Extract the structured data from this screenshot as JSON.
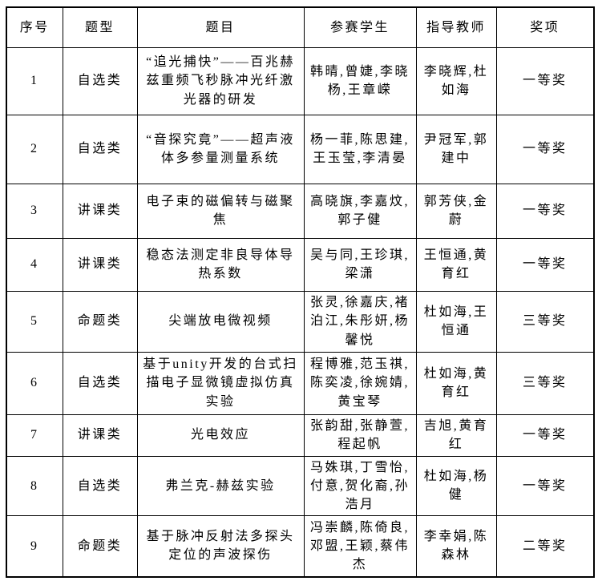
{
  "colors": {
    "background": "#ffffff",
    "border": "#000000",
    "text": "#000000"
  },
  "table": {
    "columns": [
      "序号",
      "题型",
      "题目",
      "参赛学生",
      "指导教师",
      "奖项"
    ],
    "rows": [
      {
        "no": "1",
        "type": "自选类",
        "title": "“追光捕快”——百兆赫兹重频飞秒脉冲光纤激光器的研发",
        "students": "韩晴,曾婕,李晓杨,王章嵘",
        "teachers": "李晓辉,杜如海",
        "award": "一等奖"
      },
      {
        "no": "2",
        "type": "自选类",
        "title": "“音探究竟”——超声液体多参量测量系统",
        "students": "杨一菲,陈思建,王玉莹,李清晏",
        "teachers": "尹冠军,郭建中",
        "award": "一等奖"
      },
      {
        "no": "3",
        "type": "讲课类",
        "title": "电子束的磁偏转与磁聚焦",
        "students": "高晓旗,李嘉炆,郭子健",
        "teachers": "郭芳侠,金蔚",
        "award": "一等奖"
      },
      {
        "no": "4",
        "type": "讲课类",
        "title": "稳态法测定非良导体导热系数",
        "students": "吴与同,王珍琪,梁潇",
        "teachers": "王恒通,黄育红",
        "award": "一等奖"
      },
      {
        "no": "5",
        "type": "命题类",
        "title": "尖端放电微视频",
        "students": "张灵,徐嘉庆,褚泊江,朱彤妍,杨馨悦",
        "teachers": "杜如海,王恒通",
        "award": "三等奖"
      },
      {
        "no": "6",
        "type": "自选类",
        "title": "基于unity开发的台式扫描电子显微镜虚拟仿真实验",
        "students": "程博雅,范玉祺,陈奕凌,徐婉婧,黄宝琴",
        "teachers": "杜如海,黄育红",
        "award": "三等奖"
      },
      {
        "no": "7",
        "type": "讲课类",
        "title": "光电效应",
        "students": "张韵甜,张静萱,程起帆",
        "teachers": "吉旭,黄育红",
        "award": "一等奖"
      },
      {
        "no": "8",
        "type": "自选类",
        "title": "弗兰克-赫兹实验",
        "students": "马姝琪,丁雪怡,付意,贺化裔,孙浩月",
        "teachers": "杜如海,杨健",
        "award": "一等奖"
      },
      {
        "no": "9",
        "type": "命题类",
        "title": "基于脉冲反射法多探头定位的声波探伤",
        "students": "冯崇麟,陈倚良,邓盟,王颖,蔡伟杰",
        "teachers": "李幸娟,陈森林",
        "award": "二等奖"
      }
    ]
  }
}
